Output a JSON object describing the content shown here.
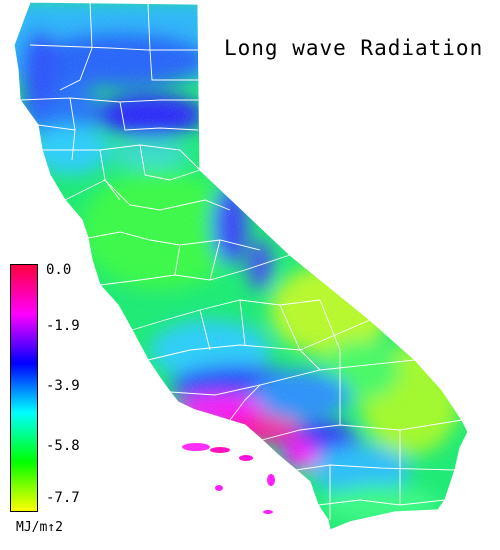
{
  "map": {
    "title": "Long wave Radiation",
    "legend": {
      "unit": "MJ/m↑2",
      "ticks": [
        "0.0",
        "-1.9",
        "-3.9",
        "-5.8",
        "-7.7"
      ],
      "min": -7.7,
      "max": 0.0,
      "colors": [
        "#ff0040",
        "#ff00ff",
        "#0000ff",
        "#00ffff",
        "#00ff00",
        "#ffff00"
      ]
    },
    "boundary_color": "#ffffff"
  }
}
